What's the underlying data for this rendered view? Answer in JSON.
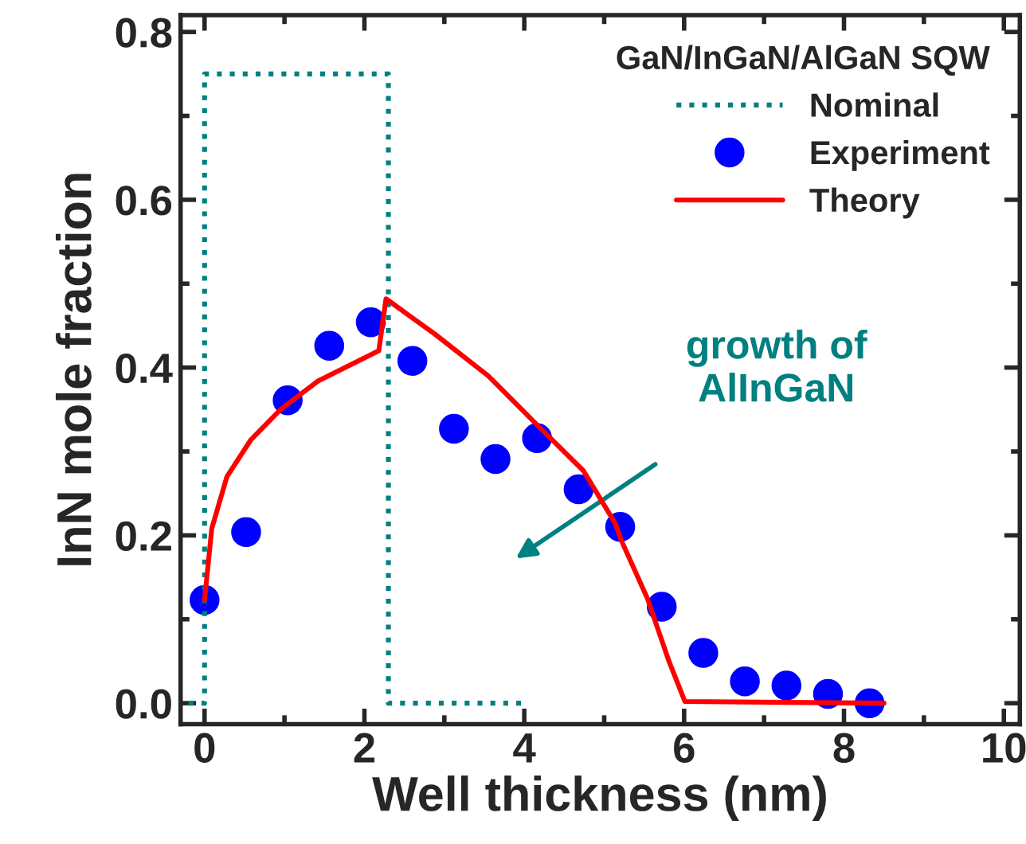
{
  "chart_data": {
    "type": "line",
    "xlabel": "Well thickness (nm)",
    "ylabel": "InN mole fraction",
    "legend_title": "GaN/InGaN/AlGaN SQW",
    "xlim": [
      -0.3,
      10.2
    ],
    "ylim": [
      -0.025,
      0.82
    ],
    "xticks": [
      0,
      2,
      4,
      6,
      8,
      10
    ],
    "yticks": [
      {
        "value": 0,
        "label": "0.0"
      },
      {
        "value": 0.2,
        "label": "0.2"
      },
      {
        "value": 0.4,
        "label": "0.4"
      },
      {
        "value": 0.6,
        "label": "0.6"
      },
      {
        "value": 0.8,
        "label": "0.8"
      }
    ],
    "grid": false,
    "legend": "top right",
    "annotations": [
      "growth of\nAlInGaN"
    ],
    "series": [
      {
        "name": "Nominal",
        "line_style": "dotted",
        "color": "#008080",
        "x": [
          -0.2,
          0,
          0,
          2.3,
          2.3,
          4
        ],
        "values": [
          0,
          0,
          0.75,
          0.75,
          0,
          0
        ]
      },
      {
        "name": "Experiment",
        "type": "scatter",
        "marker": "circle",
        "color": "#0000ff",
        "x": [
          0,
          0.52,
          1.04,
          1.56,
          2.08,
          2.6,
          3.12,
          3.64,
          4.16,
          4.68,
          5.2,
          5.72,
          6.24,
          6.76,
          7.28,
          7.8,
          8.32
        ],
        "values": [
          0.123,
          0.204,
          0.361,
          0.426,
          0.454,
          0.408,
          0.327,
          0.291,
          0.316,
          0.255,
          0.21,
          0.115,
          0.06,
          0.026,
          0.021,
          0.011,
          0.0
        ]
      },
      {
        "name": "Theory",
        "line_style": "solid",
        "color": "#ff0000",
        "x": [
          0,
          0.09,
          0.28,
          0.58,
          0.95,
          1.42,
          1.82,
          2.18,
          2.27,
          2.88,
          3.55,
          4.21,
          4.74,
          5.14,
          5.21,
          5.54,
          5.81,
          6.01,
          8.5
        ],
        "values": [
          0.123,
          0.208,
          0.27,
          0.314,
          0.35,
          0.384,
          0.403,
          0.42,
          0.482,
          0.44,
          0.39,
          0.327,
          0.277,
          0.214,
          0.195,
          0.125,
          0.05,
          0.002,
          0.0
        ]
      }
    ]
  }
}
